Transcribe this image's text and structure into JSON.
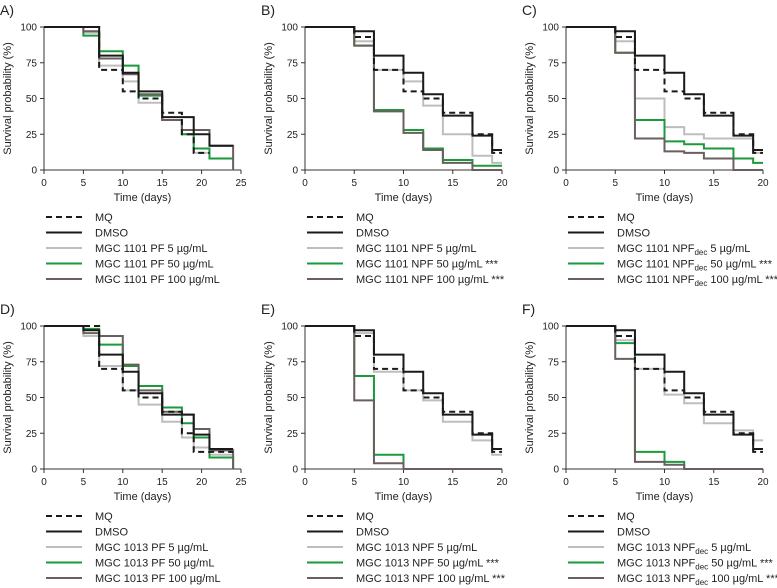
{
  "figure": {
    "styles": {
      "MQ": {
        "color": "#1a1a1a",
        "dash": "6,4"
      },
      "DMSO": {
        "color": "#1a1a1a",
        "dash": ""
      },
      "low": {
        "color": "#bdbdbd",
        "dash": ""
      },
      "mid": {
        "color": "#1a9a3a",
        "dash": ""
      },
      "high": {
        "color": "#6b5e5e",
        "dash": ""
      }
    }
  },
  "chart_data": [
    {
      "type": "line",
      "panel": "A)",
      "title": "",
      "xlabel": "Time (days)",
      "ylabel": "Survival probability (%)",
      "xlim": [
        0,
        25
      ],
      "ylim": [
        0,
        100
      ],
      "xticks": [
        "0",
        "5",
        "10",
        "15",
        "20",
        "25"
      ],
      "yticks": [
        "0",
        "25",
        "50",
        "75",
        "100"
      ],
      "series": [
        {
          "name": "MQ",
          "style": "MQ",
          "x": [
            0,
            7,
            10,
            12,
            15,
            17.5,
            19,
            21
          ],
          "y": [
            100,
            70,
            55,
            50,
            40,
            25,
            12,
            12
          ]
        },
        {
          "name": "DMSO",
          "style": "DMSO",
          "x": [
            0,
            7,
            10,
            12,
            15,
            19,
            21,
            24
          ],
          "y": [
            100,
            80,
            68,
            55,
            37,
            25,
            17,
            17
          ]
        },
        {
          "name": "MGC 1101 PF 5 µg/mL",
          "style": "low",
          "x": [
            0,
            5,
            7,
            10,
            12,
            15,
            17.5,
            19,
            21
          ],
          "y": [
            100,
            96,
            73,
            62,
            47,
            35,
            25,
            12,
            12
          ]
        },
        {
          "name": "MGC 1101 PF 50 µg/mL",
          "style": "mid",
          "x": [
            0,
            5,
            7,
            10,
            12,
            15,
            17.5,
            19,
            21,
            24
          ],
          "y": [
            100,
            94,
            83,
            73,
            52,
            35,
            25,
            15,
            8,
            8
          ]
        },
        {
          "name": "MGC 1101 PF 100 µg/mL",
          "style": "high",
          "x": [
            0,
            5,
            7,
            10,
            12,
            15,
            17.5,
            21,
            24
          ],
          "y": [
            100,
            97,
            78,
            67,
            53,
            35,
            28,
            17,
            0
          ]
        }
      ]
    },
    {
      "type": "line",
      "panel": "B)",
      "title": "",
      "xlabel": "Time (days)",
      "ylabel": "Survival probability (%)",
      "xlim": [
        0,
        20
      ],
      "ylim": [
        0,
        100
      ],
      "xticks": [
        "0",
        "5",
        "10",
        "15",
        "20"
      ],
      "yticks": [
        "0",
        "25",
        "50",
        "75",
        "100"
      ],
      "series": [
        {
          "name": "MQ",
          "style": "MQ",
          "x": [
            0,
            5,
            7,
            10,
            12,
            14,
            17,
            19,
            20
          ],
          "y": [
            100,
            93,
            70,
            55,
            50,
            40,
            25,
            12,
            12
          ]
        },
        {
          "name": "DMSO",
          "style": "DMSO",
          "x": [
            0,
            5,
            7,
            10,
            12,
            14,
            17,
            19,
            20
          ],
          "y": [
            100,
            97,
            80,
            68,
            53,
            38,
            24,
            14,
            14
          ]
        },
        {
          "name": "MGC 1101 NPF 5 µg/mL",
          "style": "low",
          "x": [
            0,
            5,
            7,
            10,
            12,
            14,
            17,
            19,
            20
          ],
          "y": [
            100,
            90,
            70,
            62,
            45,
            25,
            10,
            5,
            5
          ]
        },
        {
          "name": "MGC 1101 NPF 50 µg/mL ***",
          "style": "mid",
          "x": [
            0,
            5,
            7,
            10,
            12,
            14,
            17,
            20
          ],
          "y": [
            100,
            87,
            42,
            28,
            15,
            7,
            3,
            3
          ]
        },
        {
          "name": "MGC 1101 NPF 100 µg/mL ***",
          "style": "high",
          "x": [
            0,
            5,
            7,
            10,
            12,
            14,
            17,
            20
          ],
          "y": [
            100,
            87,
            41,
            26,
            14,
            5,
            0,
            0
          ]
        }
      ]
    },
    {
      "type": "line",
      "panel": "C)",
      "title": "",
      "xlabel": "Time (days)",
      "ylabel": "Survival probability (%)",
      "xlim": [
        0,
        20
      ],
      "ylim": [
        0,
        100
      ],
      "xticks": [
        "0",
        "5",
        "10",
        "15",
        "20"
      ],
      "yticks": [
        "0",
        "25",
        "50",
        "75",
        "100"
      ],
      "series": [
        {
          "name": "MQ",
          "style": "MQ",
          "x": [
            0,
            5,
            7,
            10,
            12,
            14,
            17,
            19,
            20
          ],
          "y": [
            100,
            93,
            70,
            55,
            50,
            40,
            25,
            12,
            12
          ]
        },
        {
          "name": "DMSO",
          "style": "DMSO",
          "x": [
            0,
            5,
            7,
            10,
            12,
            14,
            17,
            19,
            20
          ],
          "y": [
            100,
            97,
            80,
            68,
            53,
            38,
            24,
            14,
            14
          ]
        },
        {
          "name": "MGC 1101 NPFdec 5 µg/mL",
          "style": "low",
          "x": [
            0,
            5,
            7,
            10,
            12,
            14,
            17,
            19,
            20
          ],
          "y": [
            100,
            90,
            50,
            30,
            25,
            22,
            22,
            12,
            12
          ]
        },
        {
          "name": "MGC 1101 NPFdec 50 µg/mL ***",
          "style": "mid",
          "x": [
            0,
            5,
            7,
            10,
            12,
            14,
            17,
            19,
            20
          ],
          "y": [
            100,
            82,
            35,
            20,
            18,
            15,
            8,
            5,
            5
          ]
        },
        {
          "name": "MGC 1101 NPFdec 100 µg/mL ***",
          "style": "high",
          "x": [
            0,
            5,
            7,
            10,
            12,
            14,
            17,
            20
          ],
          "y": [
            100,
            82,
            22,
            13,
            12,
            8,
            0,
            0
          ]
        }
      ]
    },
    {
      "type": "line",
      "panel": "D)",
      "title": "",
      "xlabel": "Time (days)",
      "ylabel": "Survival probability (%)",
      "xlim": [
        0,
        25
      ],
      "ylim": [
        0,
        100
      ],
      "xticks": [
        "0",
        "5",
        "10",
        "15",
        "20",
        "25"
      ],
      "yticks": [
        "0",
        "25",
        "50",
        "75",
        "100"
      ],
      "series": [
        {
          "name": "MQ",
          "style": "MQ",
          "x": [
            0,
            7,
            10,
            12,
            15,
            17.5,
            19,
            21,
            24
          ],
          "y": [
            100,
            70,
            55,
            50,
            40,
            25,
            12,
            12,
            12
          ]
        },
        {
          "name": "DMSO",
          "style": "DMSO",
          "x": [
            0,
            5,
            7,
            10,
            12,
            15,
            19,
            21,
            24
          ],
          "y": [
            100,
            97,
            80,
            68,
            53,
            38,
            24,
            14,
            14
          ]
        },
        {
          "name": "MGC 1013 PF 5 µg/mL",
          "style": "low",
          "x": [
            0,
            5,
            7,
            10,
            12,
            15,
            17.5,
            19,
            21,
            24
          ],
          "y": [
            100,
            93,
            72,
            55,
            45,
            33,
            22,
            15,
            10,
            10
          ]
        },
        {
          "name": "MGC 1013 PF 50 µg/mL",
          "style": "mid",
          "x": [
            0,
            5,
            7,
            10,
            12,
            15,
            17.5,
            19,
            21,
            24
          ],
          "y": [
            100,
            98,
            87,
            72,
            58,
            43,
            32,
            22,
            8,
            0
          ]
        },
        {
          "name": "MGC 1013 PF 100 µg/mL",
          "style": "high",
          "x": [
            0,
            5,
            7,
            10,
            12,
            15,
            17.5,
            19,
            21,
            24
          ],
          "y": [
            100,
            95,
            93,
            73,
            55,
            40,
            38,
            28,
            13,
            0
          ]
        }
      ]
    },
    {
      "type": "line",
      "panel": "E)",
      "title": "",
      "xlabel": "Time (days)",
      "ylabel": "Survival probability (%)",
      "xlim": [
        0,
        20
      ],
      "ylim": [
        0,
        100
      ],
      "xticks": [
        "0",
        "5",
        "10",
        "15",
        "20"
      ],
      "yticks": [
        "0",
        "25",
        "50",
        "75",
        "100"
      ],
      "series": [
        {
          "name": "MQ",
          "style": "MQ",
          "x": [
            0,
            5,
            7,
            10,
            12,
            14,
            17,
            19,
            20
          ],
          "y": [
            100,
            93,
            70,
            55,
            50,
            40,
            25,
            12,
            12
          ]
        },
        {
          "name": "DMSO",
          "style": "DMSO",
          "x": [
            0,
            5,
            7,
            10,
            12,
            14,
            17,
            19,
            20
          ],
          "y": [
            100,
            97,
            80,
            68,
            53,
            38,
            24,
            14,
            14
          ]
        },
        {
          "name": "MGC 1013 NPF 5 µg/mL",
          "style": "low",
          "x": [
            0,
            5,
            7,
            10,
            12,
            14,
            17,
            19,
            20
          ],
          "y": [
            100,
            95,
            68,
            55,
            48,
            33,
            20,
            10,
            10
          ]
        },
        {
          "name": "MGC 1013 NPF 50 µg/mL ***",
          "style": "mid",
          "x": [
            0,
            5,
            7,
            10,
            20
          ],
          "y": [
            100,
            65,
            10,
            0,
            0
          ]
        },
        {
          "name": "MGC 1013 NPF 100 µg/mL ***",
          "style": "high",
          "x": [
            0,
            5,
            7,
            10,
            20
          ],
          "y": [
            100,
            48,
            4,
            0,
            0
          ]
        }
      ]
    },
    {
      "type": "line",
      "panel": "F)",
      "title": "",
      "xlabel": "Time (days)",
      "ylabel": "Survival probability (%)",
      "xlim": [
        0,
        20
      ],
      "ylim": [
        0,
        100
      ],
      "xticks": [
        "0",
        "5",
        "10",
        "15",
        "20"
      ],
      "yticks": [
        "0",
        "25",
        "50",
        "75",
        "100"
      ],
      "series": [
        {
          "name": "MQ",
          "style": "MQ",
          "x": [
            0,
            5,
            7,
            10,
            12,
            14,
            17,
            19,
            20
          ],
          "y": [
            100,
            93,
            70,
            55,
            50,
            40,
            25,
            12,
            12
          ]
        },
        {
          "name": "DMSO",
          "style": "DMSO",
          "x": [
            0,
            5,
            7,
            10,
            12,
            14,
            17,
            19,
            20
          ],
          "y": [
            100,
            97,
            80,
            68,
            53,
            38,
            24,
            14,
            14
          ]
        },
        {
          "name": "MGC 1013 NPFdec 5 µg/mL",
          "style": "low",
          "x": [
            0,
            5,
            7,
            10,
            12,
            14,
            17,
            19,
            20
          ],
          "y": [
            100,
            90,
            70,
            52,
            46,
            32,
            27,
            20,
            20
          ]
        },
        {
          "name": "MGC 1013 NPFdec 50 µg/mL ***",
          "style": "mid",
          "x": [
            0,
            5,
            7,
            10,
            12,
            20
          ],
          "y": [
            100,
            88,
            12,
            5,
            0,
            0
          ]
        },
        {
          "name": "MGC 1013 NPFdec 100 µg/mL ***",
          "style": "high",
          "x": [
            0,
            5,
            7,
            10,
            12,
            20
          ],
          "y": [
            100,
            77,
            5,
            3,
            0,
            0
          ]
        }
      ]
    }
  ]
}
